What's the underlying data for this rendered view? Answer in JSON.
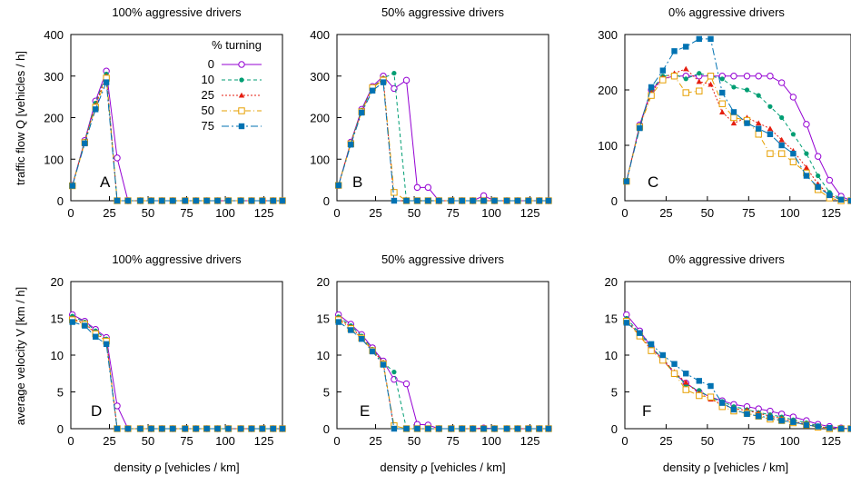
{
  "figure": {
    "ylabel_top": "traffic flow Q [vehicles / h]",
    "ylabel_bottom": "average velocity V [km / h]",
    "legend_title": "% turning"
  },
  "series_styles": [
    {
      "name": "0",
      "color": "#9400d3",
      "marker": "circle-open"
    },
    {
      "name": "10",
      "color": "#009e73",
      "marker": "circle-filled"
    },
    {
      "name": "25",
      "color": "#e51e10",
      "marker": "triangle-filled"
    },
    {
      "name": "50",
      "color": "#e69f00",
      "marker": "square-open"
    },
    {
      "name": "75",
      "color": "#0072b2",
      "marker": "square-filled"
    }
  ],
  "chart_data": [
    {
      "type": "line",
      "panel": "A",
      "title": "100% aggressive drivers",
      "xlabel": "",
      "ylabel": "traffic flow Q [vehicles / h]",
      "xlim": [
        0,
        137
      ],
      "ylim": [
        0,
        400
      ],
      "xticks": [
        0,
        25,
        50,
        75,
        100,
        125
      ],
      "yticks": [
        0,
        100,
        200,
        300,
        400
      ],
      "legend": true,
      "legend_position": "top-right",
      "x": [
        1,
        9,
        16,
        23,
        30,
        37,
        45,
        52,
        59,
        66,
        74,
        81,
        88,
        95,
        102,
        110,
        117,
        124,
        131,
        137
      ],
      "series": [
        {
          "name": "0",
          "values": [
            37,
            145,
            240,
            312,
            103,
            0,
            0,
            0,
            0,
            0,
            0,
            0,
            0,
            0,
            0,
            0,
            0,
            0,
            0,
            0
          ]
        },
        {
          "name": "10",
          "values": [
            37,
            143,
            235,
            305,
            0,
            0,
            0,
            0,
            0,
            0,
            0,
            0,
            0,
            0,
            0,
            0,
            0,
            0,
            0,
            0
          ]
        },
        {
          "name": "25",
          "values": [
            36,
            142,
            230,
            300,
            0,
            0,
            0,
            0,
            0,
            0,
            0,
            0,
            0,
            0,
            0,
            0,
            0,
            0,
            0,
            0
          ]
        },
        {
          "name": "50",
          "values": [
            36,
            140,
            225,
            295,
            0,
            0,
            0,
            0,
            0,
            0,
            0,
            0,
            0,
            0,
            0,
            0,
            0,
            0,
            0,
            0
          ]
        },
        {
          "name": "75",
          "values": [
            36,
            138,
            220,
            285,
            0,
            0,
            0,
            0,
            0,
            0,
            0,
            0,
            0,
            0,
            0,
            0,
            0,
            0,
            0,
            0
          ]
        }
      ]
    },
    {
      "type": "line",
      "panel": "B",
      "title": "50% aggressive drivers",
      "xlabel": "",
      "ylabel": "",
      "xlim": [
        0,
        137
      ],
      "ylim": [
        0,
        400
      ],
      "xticks": [
        0,
        25,
        50,
        75,
        100,
        125
      ],
      "yticks": [
        0,
        100,
        200,
        300,
        400
      ],
      "legend": false,
      "x": [
        1,
        9,
        16,
        23,
        30,
        37,
        45,
        52,
        59,
        66,
        74,
        81,
        88,
        95,
        102,
        110,
        117,
        124,
        131,
        137
      ],
      "series": [
        {
          "name": "0",
          "values": [
            37,
            141,
            220,
            275,
            300,
            270,
            290,
            32,
            32,
            0,
            0,
            0,
            0,
            12,
            0,
            0,
            0,
            0,
            0,
            0
          ]
        },
        {
          "name": "10",
          "values": [
            37,
            140,
            218,
            272,
            295,
            307,
            0,
            0,
            0,
            0,
            0,
            0,
            0,
            0,
            0,
            0,
            0,
            0,
            0,
            0
          ]
        },
        {
          "name": "25",
          "values": [
            37,
            139,
            216,
            270,
            295,
            0,
            0,
            0,
            0,
            0,
            0,
            0,
            0,
            0,
            0,
            0,
            0,
            0,
            0,
            0
          ]
        },
        {
          "name": "50",
          "values": [
            37,
            137,
            214,
            272,
            290,
            20,
            0,
            0,
            0,
            0,
            0,
            0,
            0,
            0,
            0,
            0,
            0,
            0,
            0,
            0
          ]
        },
        {
          "name": "75",
          "values": [
            37,
            135,
            212,
            265,
            285,
            0,
            0,
            0,
            0,
            0,
            0,
            0,
            0,
            0,
            0,
            0,
            0,
            0,
            0,
            0
          ]
        }
      ]
    },
    {
      "type": "line",
      "panel": "C",
      "title": "0% aggressive drivers",
      "xlabel": "",
      "ylabel": "",
      "xlim": [
        0,
        137
      ],
      "ylim": [
        0,
        300
      ],
      "xticks": [
        0,
        25,
        50,
        75,
        100,
        125
      ],
      "yticks": [
        0,
        100,
        200,
        300
      ],
      "legend": false,
      "x": [
        1,
        9,
        16,
        23,
        30,
        37,
        45,
        52,
        59,
        66,
        74,
        81,
        88,
        95,
        102,
        110,
        117,
        124,
        131,
        137
      ],
      "series": [
        {
          "name": "0",
          "values": [
            35,
            137,
            200,
            220,
            225,
            225,
            225,
            225,
            225,
            225,
            225,
            225,
            225,
            213,
            187,
            138,
            80,
            37,
            8,
            0
          ]
        },
        {
          "name": "10",
          "values": [
            35,
            136,
            200,
            225,
            228,
            220,
            230,
            225,
            220,
            205,
            200,
            190,
            170,
            150,
            120,
            85,
            45,
            15,
            3,
            0
          ]
        },
        {
          "name": "25",
          "values": [
            35,
            135,
            195,
            222,
            230,
            238,
            215,
            210,
            160,
            140,
            150,
            140,
            130,
            110,
            90,
            60,
            30,
            10,
            2,
            0
          ]
        },
        {
          "name": "50",
          "values": [
            35,
            133,
            190,
            218,
            225,
            195,
            198,
            225,
            175,
            150,
            145,
            120,
            85,
            85,
            70,
            50,
            20,
            5,
            0,
            0
          ]
        },
        {
          "name": "75",
          "values": [
            35,
            131,
            205,
            235,
            270,
            278,
            292,
            292,
            195,
            160,
            140,
            130,
            120,
            100,
            85,
            45,
            25,
            10,
            2,
            0
          ]
        }
      ]
    },
    {
      "type": "line",
      "panel": "D",
      "title": "100% aggressive drivers",
      "xlabel": "density ρ [vehicles / km]",
      "ylabel": "average velocity V [km / h]",
      "xlim": [
        0,
        137
      ],
      "ylim": [
        0,
        20
      ],
      "xticks": [
        0,
        25,
        50,
        75,
        100,
        125
      ],
      "yticks": [
        0,
        5,
        10,
        15,
        20
      ],
      "legend": false,
      "x": [
        1,
        9,
        16,
        23,
        30,
        37,
        45,
        52,
        59,
        66,
        74,
        81,
        88,
        95,
        102,
        110,
        117,
        124,
        131,
        137
      ],
      "series": [
        {
          "name": "0",
          "values": [
            15.5,
            14.6,
            13.5,
            12.4,
            3.1,
            0,
            0,
            0,
            0,
            0,
            0,
            0,
            0,
            0,
            0,
            0,
            0,
            0,
            0,
            0
          ]
        },
        {
          "name": "10",
          "values": [
            15.3,
            14.5,
            13.3,
            12.2,
            0,
            0,
            0,
            0,
            0,
            0,
            0,
            0,
            0,
            0,
            0,
            0,
            0,
            0,
            0,
            0
          ]
        },
        {
          "name": "25",
          "values": [
            15.0,
            14.3,
            13.0,
            12.0,
            0,
            0,
            0,
            0,
            0,
            0,
            0,
            0,
            0,
            0,
            0,
            0,
            0,
            0,
            0,
            0
          ]
        },
        {
          "name": "50",
          "values": [
            14.8,
            14.2,
            12.9,
            11.9,
            0,
            0,
            0,
            0,
            0,
            0,
            0,
            0,
            0,
            0,
            0,
            0,
            0,
            0,
            0,
            0
          ]
        },
        {
          "name": "75",
          "values": [
            14.5,
            14.0,
            12.5,
            11.5,
            0,
            0,
            0,
            0,
            0,
            0,
            0,
            0,
            0,
            0,
            0,
            0,
            0,
            0,
            0,
            0
          ]
        }
      ]
    },
    {
      "type": "line",
      "panel": "E",
      "title": "50% aggressive drivers",
      "xlabel": "density ρ [vehicles / km]",
      "ylabel": "",
      "xlim": [
        0,
        137
      ],
      "ylim": [
        0,
        20
      ],
      "xticks": [
        0,
        25,
        50,
        75,
        100,
        125
      ],
      "yticks": [
        0,
        5,
        10,
        15,
        20
      ],
      "legend": false,
      "x": [
        1,
        9,
        16,
        23,
        30,
        37,
        45,
        52,
        59,
        66,
        74,
        81,
        88,
        95,
        102,
        110,
        117,
        124,
        131,
        137
      ],
      "series": [
        {
          "name": "0",
          "values": [
            15.5,
            14.2,
            12.8,
            11.0,
            9.2,
            6.7,
            6.1,
            0.6,
            0.5,
            0,
            0,
            0,
            0,
            0.1,
            0,
            0,
            0,
            0,
            0,
            0
          ]
        },
        {
          "name": "10",
          "values": [
            15.2,
            14.0,
            12.6,
            10.8,
            9.0,
            7.7,
            0,
            0,
            0,
            0,
            0,
            0,
            0,
            0,
            0,
            0,
            0,
            0,
            0,
            0
          ]
        },
        {
          "name": "25",
          "values": [
            15.0,
            13.8,
            12.4,
            10.7,
            9.0,
            0,
            0,
            0,
            0,
            0,
            0,
            0,
            0,
            0,
            0,
            0,
            0,
            0,
            0,
            0
          ]
        },
        {
          "name": "50",
          "values": [
            14.8,
            13.6,
            12.3,
            10.6,
            8.8,
            0.4,
            0,
            0,
            0,
            0,
            0,
            0,
            0,
            0,
            0,
            0,
            0,
            0,
            0,
            0
          ]
        },
        {
          "name": "75",
          "values": [
            14.5,
            13.4,
            12.2,
            10.5,
            8.7,
            0,
            0,
            0,
            0,
            0,
            0,
            0,
            0,
            0,
            0,
            0,
            0,
            0,
            0,
            0
          ]
        }
      ]
    },
    {
      "type": "line",
      "panel": "F",
      "title": "0% aggressive drivers",
      "xlabel": "density ρ [vehicles / km]",
      "ylabel": "",
      "xlim": [
        0,
        137
      ],
      "ylim": [
        0,
        20
      ],
      "xticks": [
        0,
        25,
        50,
        75,
        100,
        125
      ],
      "yticks": [
        0,
        5,
        10,
        15,
        20
      ],
      "legend": false,
      "x": [
        1,
        9,
        16,
        23,
        30,
        37,
        45,
        52,
        59,
        66,
        74,
        81,
        88,
        95,
        102,
        110,
        117,
        124,
        131,
        137
      ],
      "series": [
        {
          "name": "0",
          "values": [
            15.5,
            13.3,
            11.1,
            9.4,
            7.5,
            6.2,
            5.0,
            4.3,
            3.8,
            3.3,
            3.0,
            2.7,
            2.4,
            2.0,
            1.6,
            1.1,
            0.6,
            0.3,
            0.1,
            0
          ]
        },
        {
          "name": "10",
          "values": [
            15.0,
            13.0,
            11.0,
            9.6,
            7.6,
            6.0,
            5.2,
            4.2,
            3.7,
            3.0,
            2.6,
            2.2,
            1.9,
            1.6,
            1.2,
            0.8,
            0.4,
            0.1,
            0,
            0
          ]
        },
        {
          "name": "25",
          "values": [
            14.8,
            12.7,
            10.8,
            9.5,
            7.7,
            6.3,
            4.8,
            4.0,
            3.3,
            2.7,
            2.5,
            2.1,
            1.7,
            1.4,
            1.0,
            0.6,
            0.3,
            0.1,
            0,
            0
          ]
        },
        {
          "name": "50",
          "values": [
            14.6,
            12.6,
            10.6,
            9.3,
            7.5,
            5.3,
            4.5,
            4.3,
            3.0,
            2.4,
            2.1,
            1.7,
            1.3,
            1.1,
            0.8,
            0.5,
            0.2,
            0,
            0,
            0
          ]
        },
        {
          "name": "75",
          "values": [
            14.4,
            13.0,
            11.5,
            10.0,
            8.8,
            7.5,
            6.5,
            5.8,
            3.5,
            2.6,
            2.0,
            1.7,
            1.5,
            1.1,
            0.9,
            0.5,
            0.3,
            0.1,
            0,
            0
          ]
        }
      ]
    }
  ]
}
